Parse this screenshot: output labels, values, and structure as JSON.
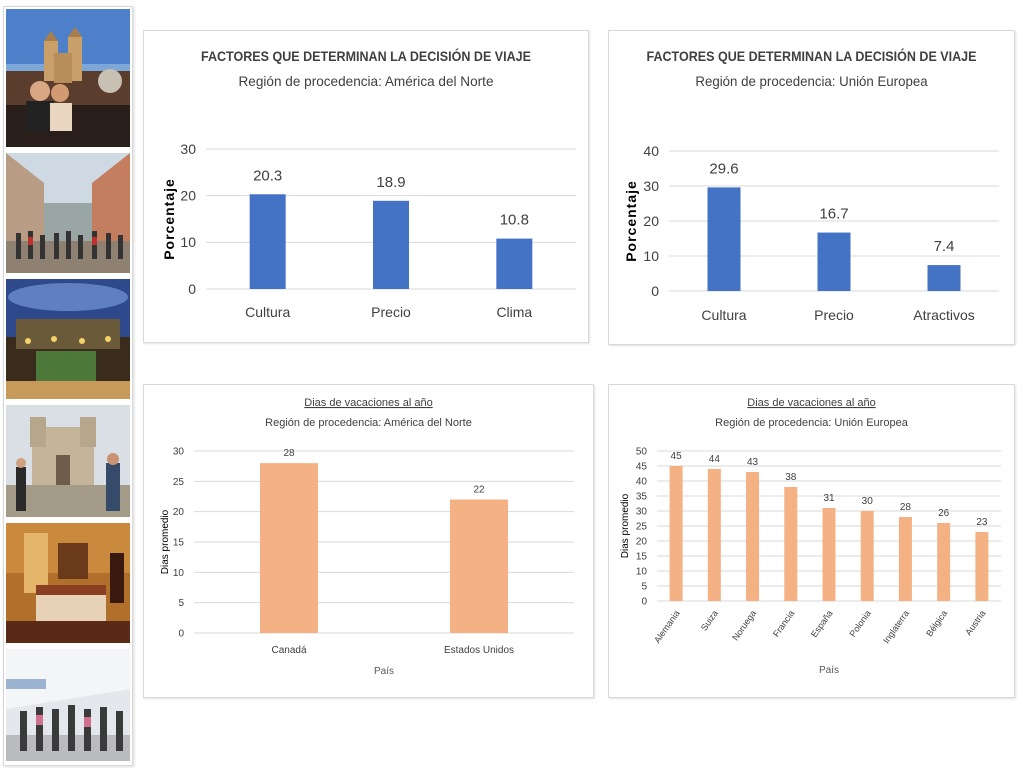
{
  "photos": [
    {
      "name": "photo-cathedral-tourists",
      "sky": "#5b86c4",
      "ground": "#3a2a22"
    },
    {
      "name": "photo-pedestrian-street",
      "sky": "#c9d4de",
      "ground": "#8c7c6c"
    },
    {
      "name": "photo-courtyard-night",
      "sky": "#3b4f8a",
      "ground": "#4a3a20"
    },
    {
      "name": "photo-church-plaza",
      "sky": "#d5dae0",
      "ground": "#a39a88"
    },
    {
      "name": "photo-hotel-room",
      "sky": "#a8672a",
      "ground": "#5a2a15"
    },
    {
      "name": "photo-airport-terminal",
      "sky": "#e2e6ea",
      "ground": "#b7b9bc"
    }
  ],
  "colors": {
    "blue": "#4472c4",
    "orange": "#f4b183",
    "grid": "#d9d9d9",
    "text": "#404040"
  },
  "chart_data": [
    {
      "type": "bar",
      "title": "FACTORES QUE DETERMINAN LA DECISIÓN DE VIAJE",
      "subtitle": "Región de procedencia: América del Norte",
      "ylabel": "Porcentaje",
      "xlabel": "",
      "categories": [
        "Cultura",
        "Precio",
        "Clima"
      ],
      "values": [
        20.3,
        18.9,
        10.8
      ],
      "value_labels": [
        "20.3",
        "18.9",
        "10.8"
      ],
      "ylim": [
        0,
        30
      ],
      "yticks": [
        0,
        10,
        20,
        30
      ],
      "grid": true,
      "color": "#4472c4"
    },
    {
      "type": "bar",
      "title": "FACTORES QUE DETERMINAN LA DECISIÓN DE VIAJE",
      "subtitle": "Región de procedencia: Unión Europea",
      "ylabel": "Porcentaje",
      "xlabel": "",
      "categories": [
        "Cultura",
        "Precio",
        "Atractivos"
      ],
      "values": [
        29.6,
        16.7,
        7.4
      ],
      "value_labels": [
        "29.6",
        "16.7",
        "7.4"
      ],
      "ylim": [
        0,
        40
      ],
      "yticks": [
        0,
        10,
        20,
        30,
        40
      ],
      "grid": true,
      "color": "#4472c4"
    },
    {
      "type": "bar",
      "title": "Dias de vacaciones al año",
      "subtitle": "Región de procedencia: América del Norte",
      "ylabel": "Dias promedio",
      "xlabel": "País",
      "categories": [
        "Canadá",
        "Estados Unidos"
      ],
      "values": [
        28,
        22
      ],
      "value_labels": [
        "28",
        "22"
      ],
      "ylim": [
        0,
        30
      ],
      "yticks": [
        0,
        5,
        10,
        15,
        20,
        25,
        30
      ],
      "grid": true,
      "color": "#f4b183"
    },
    {
      "type": "bar",
      "title": "Dias de vacaciones al año",
      "subtitle": "Región de procedencia: Unión Europea",
      "ylabel": "Dias promedio",
      "xlabel": "País",
      "categories": [
        "Alemania",
        "Suiza",
        "Noruega",
        "Francia",
        "España",
        "Polonia",
        "Inglaterra",
        "Bélgica",
        "Austria"
      ],
      "values": [
        45,
        44,
        43,
        38,
        31,
        30,
        28,
        26,
        23
      ],
      "value_labels": [
        "45",
        "44",
        "43",
        "38",
        "31",
        "30",
        "28",
        "26",
        "23"
      ],
      "ylim": [
        0,
        50
      ],
      "yticks": [
        0,
        5,
        10,
        15,
        20,
        25,
        30,
        35,
        40,
        45,
        50
      ],
      "grid": true,
      "color": "#f4b183",
      "rotated_categories": true
    }
  ]
}
